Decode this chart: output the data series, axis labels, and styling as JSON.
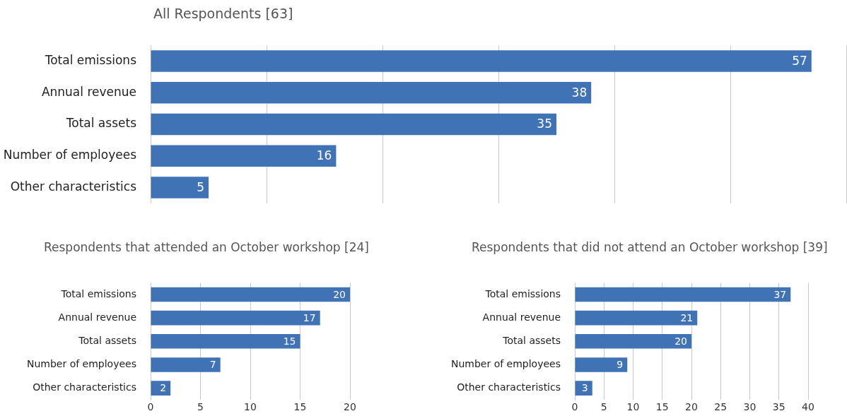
{
  "chart_data": [
    {
      "type": "bar",
      "orientation": "horizontal",
      "title": "All Respondents [63]",
      "categories": [
        "Total emissions",
        "Annual revenue",
        "Total assets",
        "Number of employees",
        "Other characteristics"
      ],
      "values": [
        57,
        38,
        35,
        16,
        5
      ],
      "color": "#3f73b6",
      "xlim": [
        0,
        60
      ],
      "xticks": [
        {
          "value": 0,
          "label": null
        },
        {
          "value": 10,
          "label": null
        },
        {
          "value": 20,
          "label": null
        },
        {
          "value": 30,
          "label": null
        },
        {
          "value": 40,
          "label": null
        },
        {
          "value": 50,
          "label": null
        },
        {
          "value": 60,
          "label": null
        }
      ],
      "tick_labels": "y",
      "grid": "x",
      "data_labels": true
    },
    {
      "type": "bar",
      "orientation": "horizontal",
      "title": "Respondents that attended an October workshop [24]",
      "categories": [
        "Total emissions",
        "Annual revenue",
        "Total assets",
        "Number of employees",
        "Other characteristics"
      ],
      "values": [
        20,
        17,
        15,
        7,
        2
      ],
      "color": "#3f73b6",
      "xlim": [
        0,
        20
      ],
      "xticks": [
        0,
        5,
        10,
        15,
        20
      ],
      "grid": "x",
      "data_labels": true
    },
    {
      "type": "bar",
      "orientation": "horizontal",
      "title": "Respondents that did not attend an October workshop [39]",
      "categories": [
        "Total emissions",
        "Annual revenue",
        "Total assets",
        "Number of employees",
        "Other characteristics"
      ],
      "values": [
        37,
        21,
        20,
        9,
        3
      ],
      "color": "#3f73b6",
      "xlim": [
        0,
        40
      ],
      "xticks": [
        0,
        5,
        10,
        15,
        20,
        25,
        30,
        35,
        40
      ],
      "grid": "x",
      "data_labels": true
    }
  ]
}
